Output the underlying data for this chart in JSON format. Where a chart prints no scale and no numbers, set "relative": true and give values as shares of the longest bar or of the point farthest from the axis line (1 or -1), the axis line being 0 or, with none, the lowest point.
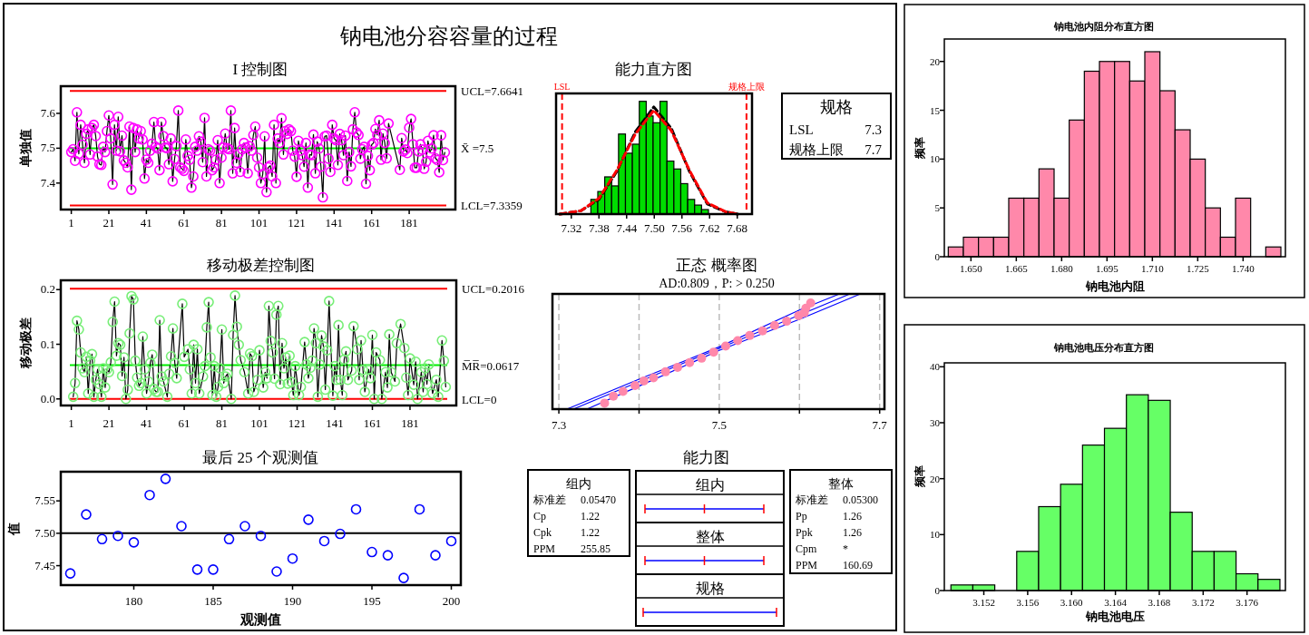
{
  "chart_data": [
    {
      "type": "line",
      "title": "钠电池分容容量的过程",
      "subtitle": "I 控制图",
      "ylabel": "单独值",
      "color": "#ff00ff",
      "marker": "circle",
      "x": [
        1,
        2,
        3,
        4,
        5,
        6,
        7,
        8,
        9,
        10,
        11,
        12,
        13,
        14,
        15,
        16,
        17,
        18,
        19,
        20,
        21,
        22,
        23,
        24,
        25,
        26,
        27,
        28,
        29,
        30,
        31,
        32,
        33,
        34,
        35,
        36,
        37,
        38,
        39,
        40,
        41,
        42,
        43,
        44,
        45,
        46,
        47,
        48,
        49,
        50,
        51,
        52,
        53,
        54,
        55,
        56,
        57,
        58,
        59,
        60,
        61,
        62,
        63,
        64,
        65,
        66,
        67,
        68,
        69,
        70,
        71,
        72,
        73,
        74,
        75,
        76,
        77,
        78,
        79,
        80,
        81,
        82,
        83,
        84,
        85,
        86,
        87,
        88,
        89,
        90,
        91,
        92,
        93,
        94,
        95,
        96,
        97,
        98,
        99,
        100,
        101,
        102,
        103,
        104,
        105,
        106,
        107,
        108,
        109,
        110,
        111,
        112,
        113,
        114,
        115,
        116,
        117,
        118,
        119,
        120,
        121,
        122,
        123,
        124,
        125,
        126,
        127,
        128,
        129,
        130,
        131,
        132,
        133,
        134,
        135,
        136,
        137,
        138,
        139,
        140,
        141,
        142,
        143,
        144,
        145,
        146,
        147,
        148,
        149,
        150,
        151,
        152,
        153,
        154,
        155,
        156,
        157,
        158,
        159,
        160,
        161,
        162,
        163,
        164,
        165,
        166,
        167,
        168,
        169,
        170,
        176,
        177,
        178,
        179,
        180,
        181,
        182,
        183,
        184,
        185,
        186,
        187,
        188,
        189,
        190,
        191,
        192,
        193,
        194,
        195,
        196,
        197,
        198,
        199,
        200
      ],
      "values": [
        7.489,
        7.497,
        7.464,
        7.603,
        7.484,
        7.567,
        7.51,
        7.458,
        7.541,
        7.554,
        7.482,
        7.558,
        7.567,
        7.535,
        7.476,
        7.454,
        7.452,
        7.504,
        7.489,
        7.549,
        7.594,
        7.528,
        7.396,
        7.567,
        7.493,
        7.59,
        7.491,
        7.536,
        7.465,
        7.458,
        7.445,
        7.562,
        7.381,
        7.558,
        7.489,
        7.554,
        7.528,
        7.549,
        7.525,
        7.413,
        7.467,
        7.458,
        7.493,
        7.513,
        7.575,
        7.504,
        7.499,
        7.437,
        7.575,
        7.535,
        7.502,
        7.5,
        7.454,
        7.528,
        7.405,
        7.469,
        7.506,
        7.608,
        7.445,
        7.441,
        7.435,
        7.525,
        7.478,
        7.467,
        7.387,
        7.419,
        7.504,
        7.493,
        7.534,
        7.519,
        7.46,
        7.587,
        7.419,
        7.497,
        7.493,
        7.437,
        7.445,
        7.467,
        7.523,
        7.4,
        7.473,
        7.502,
        7.542,
        7.5,
        7.497,
        7.608,
        7.428,
        7.558,
        7.458,
        7.484,
        7.432,
        7.497,
        7.515,
        7.502,
        7.428,
        7.506,
        7.493,
        7.538,
        7.562,
        7.473,
        7.445,
        7.4,
        7.426,
        7.534,
        7.374,
        7.445,
        7.45,
        7.419,
        7.567,
        7.4,
        7.528,
        7.515,
        7.586,
        7.482,
        7.549,
        7.541,
        7.554,
        7.549,
        7.493,
        7.476,
        7.418,
        7.521,
        7.493,
        7.48,
        7.447,
        7.515,
        7.387,
        7.482,
        7.48,
        7.539,
        7.428,
        7.519,
        7.499,
        7.447,
        7.359,
        7.534,
        7.536,
        7.47,
        7.432,
        7.567,
        7.528,
        7.523,
        7.452,
        7.541,
        7.523,
        7.48,
        7.536,
        7.406,
        7.489,
        7.448,
        7.554,
        7.603,
        7.545,
        7.538,
        7.47,
        7.497,
        7.504,
        7.398,
        7.478,
        7.437,
        7.51,
        7.515,
        7.555,
        7.538,
        7.58,
        7.467,
        7.542,
        7.515,
        7.471,
        7.571,
        7.438,
        7.529,
        7.491,
        7.496,
        7.486,
        7.559,
        7.584,
        7.511,
        7.444,
        7.444,
        7.491,
        7.511,
        7.496,
        7.441,
        7.461,
        7.521,
        7.488,
        7.499,
        7.537,
        7.471,
        7.466,
        7.431,
        7.537,
        7.466,
        7.488
      ],
      "xlim": [
        -4.6,
        205.6
      ],
      "ylim": [
        7.324,
        7.678
      ],
      "xticks": [
        1,
        21,
        41,
        61,
        81,
        101,
        121,
        141,
        161,
        181
      ],
      "yticks": [
        7.4,
        7.5,
        7.6
      ],
      "ref_lines": [
        {
          "axis": "y",
          "value": 7.6641,
          "label": "UCL=7.6641",
          "color": "#ff0000"
        },
        {
          "axis": "y",
          "value": 7.5,
          "label": "X̄ =7.5",
          "color": "#00ee00"
        },
        {
          "axis": "y",
          "value": 7.3359,
          "label": "LCL=7.3359",
          "color": "#ff0000"
        }
      ]
    },
    {
      "type": "histogram",
      "title": "能力直方图",
      "relative": true,
      "color": "#00dd00",
      "bins": [
        7.3625,
        7.3775,
        7.3925,
        7.4075,
        7.4225,
        7.4375,
        7.4525,
        7.4675,
        7.4825,
        7.4975,
        7.5125,
        7.5275,
        7.5425,
        7.5575,
        7.5725,
        7.5875,
        7.6025,
        7.6175
      ],
      "values": [
        0.13,
        0.2,
        0.33,
        0.25,
        0.71,
        0.54,
        0.62,
        1,
        0.87,
        0.81,
        1,
        0.47,
        0.4,
        0.27,
        0.13,
        0.08,
        0.04
      ],
      "series": [
        {
          "type": "line",
          "color": "#000000",
          "line_style": "dashed",
          "x": [
            7.295,
            7.341,
            7.38,
            7.419,
            7.459,
            7.499,
            7.537,
            7.576,
            7.615,
            7.655,
            7.681
          ],
          "values": [
            0,
            0.03,
            0.13,
            0.38,
            0.73,
            0.95,
            0.76,
            0.38,
            0.09,
            0.02,
            0
          ]
        },
        {
          "type": "line",
          "color": "#ff0000",
          "line_style": "dashed",
          "x": [
            7.295,
            7.341,
            7.38,
            7.419,
            7.459,
            7.499,
            7.537,
            7.576,
            7.615,
            7.655,
            7.681
          ],
          "values": [
            0,
            0.03,
            0.14,
            0.39,
            0.71,
            0.92,
            0.74,
            0.39,
            0.1,
            0.02,
            0
          ]
        }
      ],
      "xlim": [
        7.287,
        7.712
      ],
      "xticks": [
        7.32,
        7.38,
        7.44,
        {
          "value": 7.5,
          "label": "7.50"
        },
        7.56,
        7.62,
        7.68
      ],
      "ref_lines": [
        {
          "axis": "x",
          "value": 7.3,
          "label": "LSL",
          "color": "#ff0000",
          "line_style": "dashed"
        },
        {
          "axis": "x",
          "value": 7.7,
          "label": "规格上限",
          "color": "#ff0000",
          "line_style": "dashed"
        }
      ]
    },
    {
      "type": "other",
      "title": "规格",
      "annotations": [
        "LSL",
        "7.3",
        "规格上限",
        "7.7"
      ]
    },
    {
      "type": "line",
      "title": "移动极差控制图",
      "ylabel": "移动极差",
      "color": "#77ee77",
      "marker": "circle",
      "x": [
        2,
        3,
        4,
        5,
        6,
        7,
        8,
        9,
        10,
        11,
        12,
        13,
        14,
        15,
        16,
        17,
        18,
        19,
        20,
        21,
        22,
        23,
        24,
        25,
        26,
        27,
        28,
        29,
        30,
        31,
        32,
        33,
        34,
        35,
        36,
        37,
        38,
        39,
        40,
        41,
        42,
        43,
        44,
        45,
        46,
        47,
        48,
        49,
        50,
        52,
        53,
        54,
        55,
        56,
        57,
        60,
        61,
        63,
        64,
        65,
        66,
        67,
        68,
        69,
        71,
        72,
        73,
        74,
        75,
        76,
        77,
        78,
        79,
        80,
        81,
        82,
        83,
        84,
        86,
        87,
        88,
        89,
        90,
        91,
        93,
        95,
        96,
        97,
        98,
        100,
        101,
        103,
        104,
        105,
        106,
        107,
        108,
        109,
        110,
        111,
        112,
        113,
        114,
        115,
        116,
        117,
        118,
        119,
        120,
        122,
        123,
        125,
        126,
        127,
        128,
        129,
        130,
        131,
        132,
        133,
        134,
        135,
        136,
        137,
        138,
        140,
        141,
        142,
        143,
        144,
        145,
        146,
        147,
        148,
        150,
        151,
        153,
        154,
        155,
        156,
        157,
        159,
        160,
        161,
        162,
        163,
        165,
        166,
        168,
        169,
        170,
        171,
        173,
        174,
        176,
        178,
        179,
        180,
        181,
        183,
        184,
        185,
        187,
        188,
        189,
        190,
        191,
        193,
        195,
        196,
        198,
        199,
        200
      ],
      "values": [
        0.004,
        0.029,
        0.143,
        0.127,
        0.085,
        0.056,
        0.049,
        0.077,
        0.01,
        0.07,
        0.082,
        0.004,
        0.035,
        0.054,
        0.027,
        0.004,
        0.056,
        0.021,
        0.054,
        0.049,
        0.067,
        0.141,
        0.178,
        0.079,
        0.102,
        0.099,
        0.042,
        0.076,
        0,
        0.017,
        0.12,
        0.188,
        0.182,
        0.07,
        0.039,
        0.024,
        0.029,
        0.114,
        0.054,
        0.01,
        0.032,
        0.066,
        0.081,
        0.018,
        0.013,
        0.013,
        0.144,
        0.041,
        0.032,
        0.004,
        0.046,
        0.078,
        0.129,
        0.066,
        0.038,
        0.174,
        0.077,
        0.091,
        0.054,
        0.01,
        0.099,
        0.029,
        0.091,
        0.01,
        0.041,
        0.06,
        0.131,
        0.177,
        0.076,
        0.007,
        0.06,
        0.004,
        0.022,
        0.056,
        0.127,
        0.029,
        0.041,
        0.046,
        0,
        0.117,
        0.189,
        0.132,
        0.099,
        0.071,
        0.049,
        0.01,
        0.083,
        0.078,
        0.013,
        0.035,
        0.089,
        0.021,
        0.049,
        0.038,
        0.17,
        0.106,
        0.085,
        0.037,
        0.154,
        0.17,
        0.027,
        0.102,
        0.056,
        0.076,
        0.028,
        0.079,
        0.031,
        0.007,
        0.06,
        0.007,
        0.022,
        0.104,
        0.063,
        0.038,
        0.057,
        0.07,
        0.129,
        0.102,
        0.004,
        0.063,
        0.116,
        0.096,
        0.017,
        0.089,
        0.179,
        0.006,
        0.06,
        0.035,
        0.135,
        0.035,
        0.007,
        0.072,
        0.087,
        0.035,
        0.052,
        0.133,
        0.091,
        0.035,
        0.107,
        0.053,
        0.013,
        0.054,
        0.038,
        0.117,
        0,
        0.085,
        0.071,
        0,
        0.049,
        0.021,
        0.118,
        0.049,
        0.032,
        0.102,
        0.137,
        0.093,
        0.039,
        0.007,
        0.074,
        0.026,
        0.068,
        0,
        0.049,
        0.013,
        0.056,
        0.027,
        0.063,
        0.01,
        0.035,
        0.004,
        0.107,
        0.07,
        0.022
      ],
      "xlim": [
        -4.6,
        205.6
      ],
      "ylim": [
        -0.012,
        0.217
      ],
      "xticks": [
        1,
        21,
        41,
        61,
        81,
        101,
        121,
        141,
        161,
        181
      ],
      "yticks": [
        {
          "value": 0,
          "label": "0.0"
        },
        0.1,
        0.2
      ],
      "ref_lines": [
        {
          "axis": "y",
          "value": 0.2016,
          "label": "UCL=0.2016",
          "color": "#ff0000"
        },
        {
          "axis": "y",
          "value": 0.0617,
          "label": "M̅R̅=0.0617",
          "color": "#00ee00"
        },
        {
          "axis": "y",
          "value": 0,
          "label": "LCL=0",
          "color": "#ff0000"
        }
      ]
    },
    {
      "type": "scatter",
      "title": "正态 概率图",
      "subtitle": "AD:0.809，P: > 0.250",
      "relative": true,
      "marker": "circle",
      "grid": "x",
      "xlim": [
        7.292,
        7.706
      ],
      "xticks": [
        7.3,
        {
          "value": 7.4,
          "label": null
        },
        7.5,
        {
          "value": 7.6,
          "label": null
        },
        7.7
      ],
      "series": [
        {
          "color": "#ff88aa",
          "x": [
            7.357,
            7.368,
            7.38,
            7.395,
            7.406,
            7.418,
            7.433,
            7.448,
            7.463,
            7.478,
            7.493,
            7.508,
            7.523,
            7.538,
            7.554,
            7.569,
            7.584,
            7.599,
            7.606,
            7.608,
            7.614
          ],
          "values": [
            0.052,
            0.113,
            0.153,
            0.205,
            0.245,
            0.271,
            0.324,
            0.363,
            0.403,
            0.442,
            0.495,
            0.547,
            0.595,
            0.639,
            0.679,
            0.726,
            0.763,
            0.811,
            0.837,
            0.876,
            0.921
          ]
        },
        {
          "type": "line",
          "marker": "none",
          "color": "#0000ff",
          "x": [
            7.31,
            7.4,
            7.5,
            7.6,
            7.65
          ],
          "values": [
            0,
            0.26,
            0.54,
            0.86,
            1
          ]
        },
        {
          "type": "line",
          "marker": "none",
          "color": "#0000ff",
          "x": [
            7.318,
            7.4,
            7.5,
            7.6,
            7.663
          ],
          "values": [
            0,
            0.238,
            0.528,
            0.817,
            1
          ]
        },
        {
          "type": "line",
          "marker": "none",
          "color": "#0000ff",
          "x": [
            7.335,
            7.4,
            7.5,
            7.6,
            7.676
          ],
          "values": [
            0,
            0.2,
            0.51,
            0.78,
            1
          ]
        }
      ]
    },
    {
      "type": "scatter",
      "title": "最后 25 个观测值",
      "xlabel": "观测值",
      "ylabel": "值",
      "color": "#0000ff",
      "marker": "circle",
      "x": [
        176,
        177,
        178,
        179,
        180,
        181,
        182,
        183,
        184,
        185,
        186,
        187,
        188,
        189,
        190,
        191,
        192,
        193,
        194,
        195,
        196,
        197,
        198,
        199,
        200
      ],
      "values": [
        7.438,
        7.529,
        7.491,
        7.496,
        7.486,
        7.559,
        7.584,
        7.511,
        7.444,
        7.444,
        7.491,
        7.511,
        7.496,
        7.441,
        7.461,
        7.521,
        7.488,
        7.499,
        7.537,
        7.471,
        7.466,
        7.431,
        7.537,
        7.466,
        7.488
      ],
      "xlim": [
        175.4,
        200.6
      ],
      "ylim": [
        7.42,
        7.595
      ],
      "xticks": [
        180,
        185,
        190,
        195,
        200
      ],
      "yticks": [
        7.45,
        {
          "value": 7.5,
          "label": "7.50"
        },
        7.55
      ],
      "ref_lines": [
        {
          "axis": "y",
          "value": 7.5,
          "color": "#000000"
        }
      ]
    },
    {
      "type": "other",
      "title": "能力图",
      "annotations": [
        "组内",
        "整体",
        "规格"
      ]
    },
    {
      "type": "other",
      "title": "组内",
      "annotations": [
        "标准差",
        "0.05470",
        "Cp",
        "1.22",
        "Cpk",
        "1.22",
        "PPM",
        "255.85"
      ]
    },
    {
      "type": "other",
      "title": "整体",
      "annotations": [
        "标准差",
        "0.05300",
        "Pp",
        "1.26",
        "Ppk",
        "1.26",
        "Cpm",
        "*",
        "PPM",
        "160.69"
      ]
    },
    {
      "type": "histogram",
      "title": "钠电池内阻分布直方图",
      "xlabel": "钠电池内阻",
      "ylabel": "频率",
      "color": "#ff88aa",
      "bins": [
        1.6425,
        1.6475,
        1.6525,
        1.6575,
        1.6625,
        1.6675,
        1.6725,
        1.6775,
        1.6825,
        1.6875,
        1.6925,
        1.6975,
        1.7025,
        1.7075,
        1.7125,
        1.7175,
        1.7225,
        1.7275,
        1.7325,
        1.7375,
        1.7425,
        1.7475,
        1.7525
      ],
      "values": [
        1,
        2,
        2,
        2,
        6,
        6,
        9,
        6,
        14,
        19,
        20,
        20,
        18,
        21,
        17,
        13,
        10,
        5,
        2,
        6,
        0,
        1
      ],
      "xlim": [
        1.6412,
        1.754
      ],
      "ylim": [
        0,
        22.3
      ],
      "xticks": [
        {
          "value": 1.65,
          "label": "1.650"
        },
        1.665,
        {
          "value": 1.68,
          "label": "1.680"
        },
        1.695,
        {
          "value": 1.71,
          "label": "1.710"
        },
        1.725,
        {
          "value": 1.74,
          "label": "1.740"
        }
      ],
      "yticks": [
        0,
        5,
        10,
        15,
        20
      ]
    },
    {
      "type": "histogram",
      "title": "钠电池电压分布直方图",
      "xlabel": "钠电池电压",
      "ylabel": "频率",
      "color": "#66ff66",
      "bins": [
        3.149,
        3.151,
        3.153,
        3.155,
        3.157,
        3.159,
        3.161,
        3.163,
        3.165,
        3.167,
        3.169,
        3.171,
        3.173,
        3.175,
        3.177,
        3.179
      ],
      "values": [
        1,
        1,
        0,
        7,
        15,
        19,
        26,
        29,
        35,
        34,
        14,
        7,
        7,
        3,
        2
      ],
      "xlim": [
        3.1484,
        3.1795
      ],
      "ylim": [
        0,
        40.7
      ],
      "xticks": [
        3.152,
        3.156,
        {
          "value": 3.16,
          "label": "3.160"
        },
        3.164,
        3.168,
        3.172,
        3.176
      ],
      "yticks": [
        0,
        10,
        20,
        30,
        40
      ]
    }
  ]
}
